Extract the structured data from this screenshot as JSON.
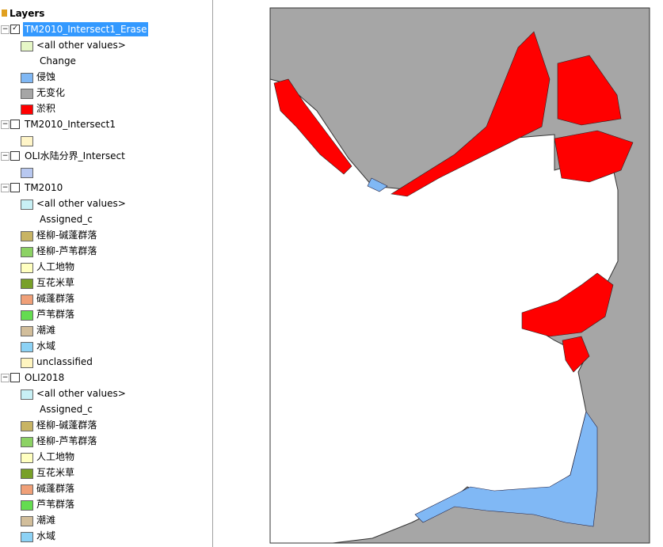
{
  "toc": {
    "title": "Layers",
    "layers": [
      {
        "name": "TM2010_Intersect1_Erase",
        "checked": true,
        "selected": true,
        "other": {
          "label": "<all other values>",
          "color": "#e6f7c6"
        },
        "field": "Change",
        "classes": [
          {
            "label": "侵蚀",
            "color": "#80b8f5"
          },
          {
            "label": "无变化",
            "color": "#a6a6a6"
          },
          {
            "label": "淤积",
            "color": "#ff0000"
          }
        ]
      },
      {
        "name": "TM2010_Intersect1",
        "checked": false,
        "classes": [
          {
            "color": "#fff5c8"
          }
        ]
      },
      {
        "name": "OLI水陆分界_Intersect",
        "checked": false,
        "classes": [
          {
            "color": "#b8c8f0"
          }
        ]
      },
      {
        "name": "TM2010",
        "checked": false,
        "other": {
          "label": "<all other values>",
          "color": "#c8f0f5"
        },
        "field": "Assigned_c",
        "classes": [
          {
            "label": "柽柳-碱蓬群落",
            "color": "#c8b464"
          },
          {
            "label": "柽柳-芦苇群落",
            "color": "#8cd264"
          },
          {
            "label": "人工地物",
            "color": "#ffffc0"
          },
          {
            "label": "互花米草",
            "color": "#78a028"
          },
          {
            "label": "碱蓬群落",
            "color": "#f0a078"
          },
          {
            "label": "芦苇群落",
            "color": "#64dc50"
          },
          {
            "label": "潮滩",
            "color": "#d2be9b"
          },
          {
            "label": "水域",
            "color": "#8cd2f5"
          },
          {
            "label": "unclassified",
            "color": "#fff5c0"
          }
        ]
      },
      {
        "name": "OLI2018",
        "checked": false,
        "other": {
          "label": "<all other values>",
          "color": "#c8f0f5"
        },
        "field": "Assigned_c",
        "classes": [
          {
            "label": "柽柳-碱蓬群落",
            "color": "#c8b464"
          },
          {
            "label": "柽柳-芦苇群落",
            "color": "#8cd264"
          },
          {
            "label": "人工地物",
            "color": "#ffffc0"
          },
          {
            "label": "互花米草",
            "color": "#78a028"
          },
          {
            "label": "碱蓬群落",
            "color": "#f0a078"
          },
          {
            "label": "芦苇群落",
            "color": "#64dc50"
          },
          {
            "label": "潮滩",
            "color": "#d2be9b"
          },
          {
            "label": "水域",
            "color": "#8cd2f5"
          }
        ]
      }
    ]
  }
}
